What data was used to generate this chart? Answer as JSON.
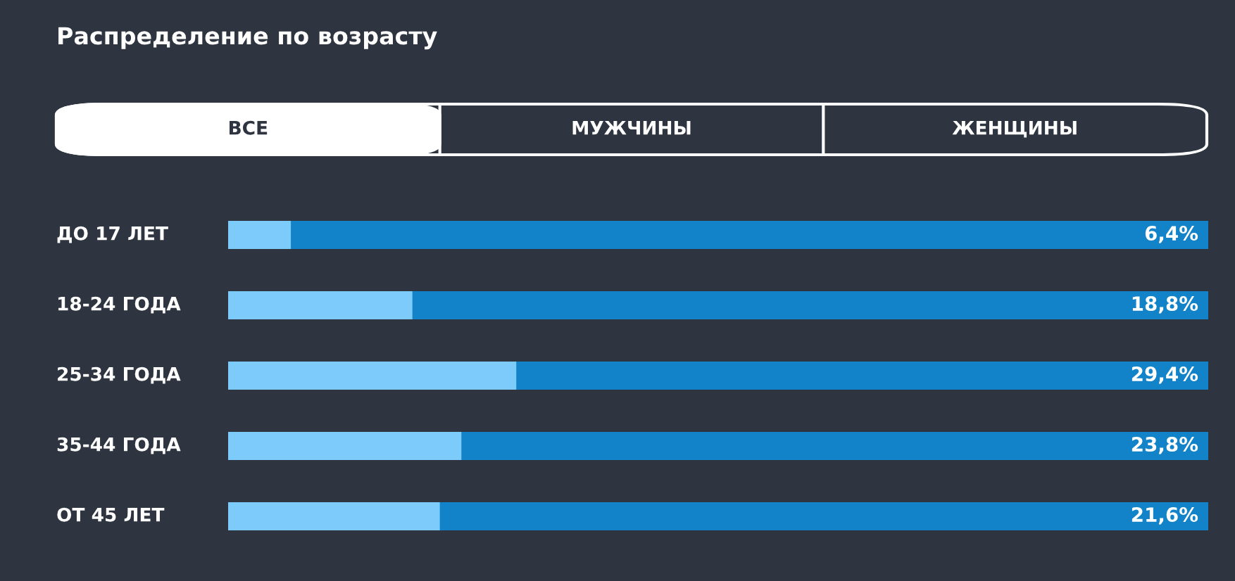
{
  "chart_data": {
    "type": "bar",
    "orientation": "horizontal",
    "title": "Распределение по возрасту",
    "annotations": [
      "ВСЕ",
      "МУЖЧИНЫ",
      "ЖЕНЩИНЫ"
    ],
    "categories": [
      "ДО 17 ЛЕТ",
      "18-24 ГОДА",
      "25-34 ГОДА",
      "35-44 ГОДА",
      "ОТ 45 ЛЕТ"
    ],
    "values": [
      6.4,
      18.8,
      29.4,
      23.8,
      21.6
    ],
    "value_labels": [
      "6,4%",
      "18,8%",
      "29,4%",
      "23,8%",
      "21,6%"
    ],
    "color": "#7ccbfb",
    "xlim": [
      0,
      100
    ],
    "tick_labels": "y",
    "grid": "y"
  }
}
